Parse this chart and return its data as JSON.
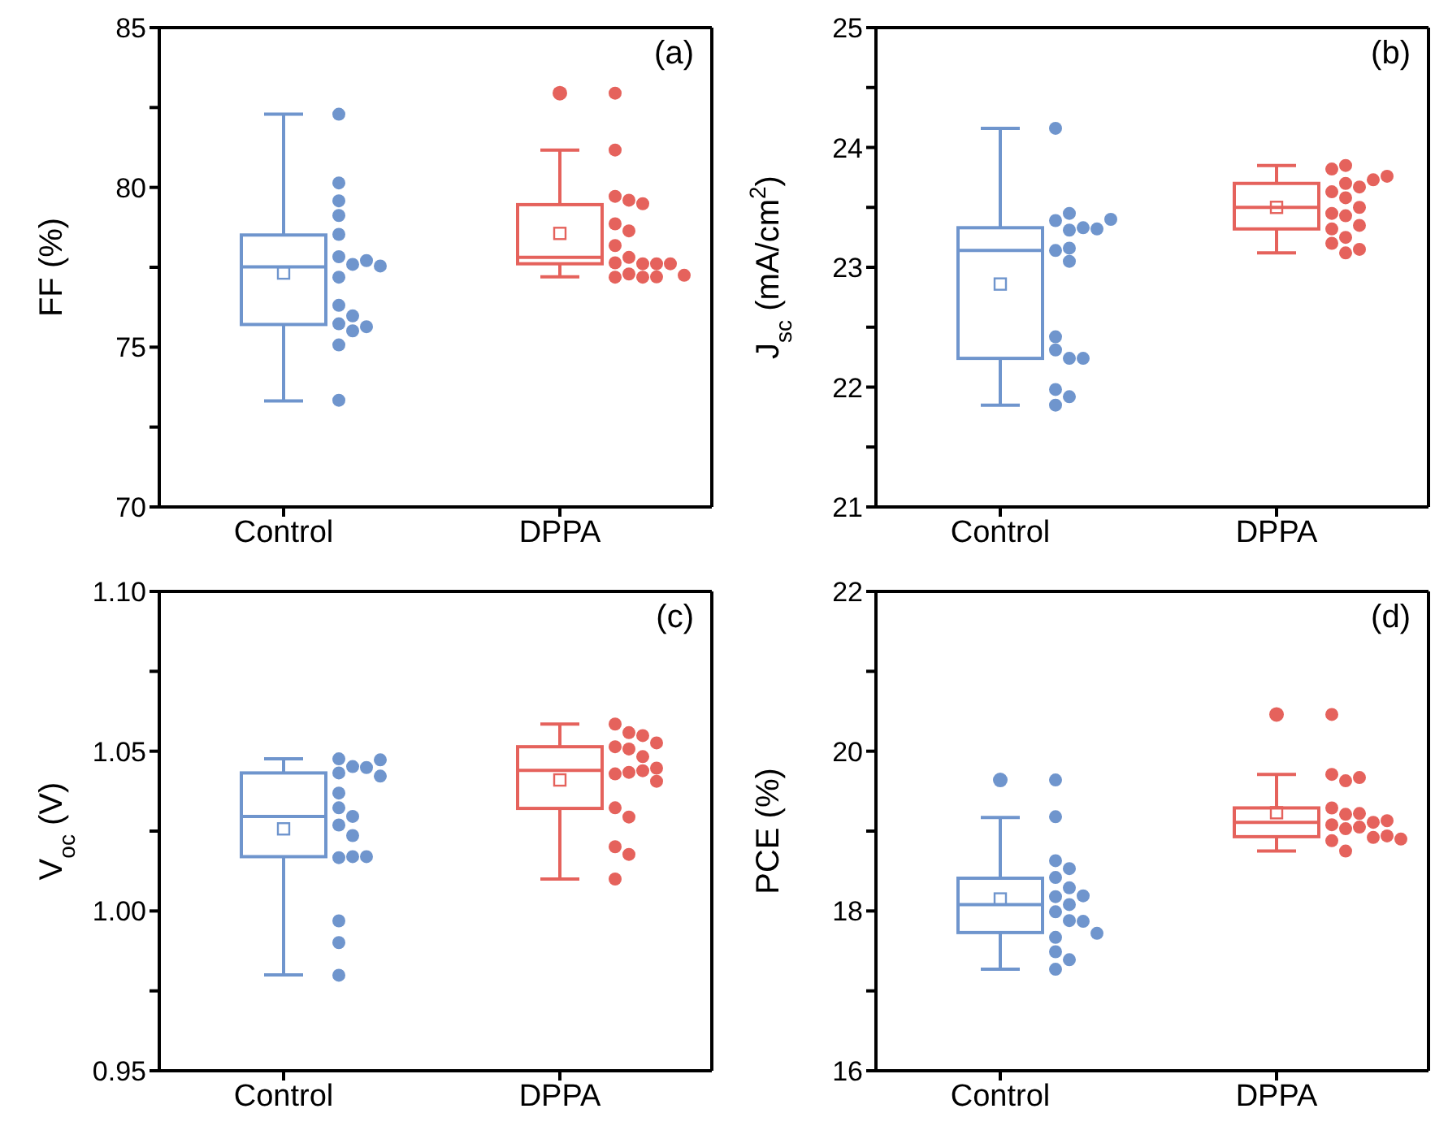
{
  "chart_data": [
    {
      "type": "box",
      "annotations": [
        "(a)"
      ],
      "ylabel": "FF (%)",
      "categories": [
        "Control",
        "DPPA"
      ],
      "colors": [
        "#6f95cd",
        "#e5625c"
      ],
      "ylim": [
        70,
        85
      ],
      "yticks": [
        70,
        {
          "value": 72.5,
          "label": null
        },
        75,
        {
          "value": 77.5,
          "label": null
        },
        80,
        {
          "value": 82.5,
          "label": null
        },
        85
      ],
      "boxes": [
        {
          "low": 73.32,
          "q1": 75.71,
          "median": 77.51,
          "q3": 78.51,
          "high": 82.29,
          "mean": 77.32
        },
        {
          "low": 77.2,
          "q1": 77.61,
          "median": 77.81,
          "q3": 79.46,
          "high": 81.17,
          "mean": 78.56,
          "outliers": [
            82.95
          ]
        }
      ],
      "series": [
        {
          "type": "scatter",
          "color": "#6f95cd",
          "x": [
            "Control",
            "Control",
            "Control",
            "Control",
            "Control",
            "Control",
            "Control",
            "Control",
            "Control",
            "Control",
            "Control",
            "Control",
            "Control",
            "Control",
            "Control",
            "Control",
            "Control"
          ],
          "values": [
            82.29,
            80.14,
            79.58,
            79.12,
            78.53,
            77.83,
            77.59,
            77.71,
            77.19,
            77.54,
            76.31,
            75.73,
            75.98,
            75.64,
            75.51,
            75.07,
            73.34
          ]
        },
        {
          "type": "scatter",
          "color": "#e5625c",
          "x": [
            "DPPA",
            "DPPA",
            "DPPA",
            "DPPA",
            "DPPA",
            "DPPA",
            "DPPA",
            "DPPA",
            "DPPA",
            "DPPA",
            "DPPA",
            "DPPA",
            "DPPA",
            "DPPA",
            "DPPA",
            "DPPA",
            "DPPA",
            "DPPA"
          ],
          "values": [
            82.95,
            81.17,
            79.72,
            79.6,
            79.49,
            78.86,
            78.64,
            78.18,
            77.81,
            77.64,
            77.61,
            77.61,
            77.61,
            77.29,
            77.25,
            77.19,
            77.19,
            77.2
          ]
        }
      ]
    },
    {
      "type": "box",
      "annotations": [
        "(b)"
      ],
      "ylabel": "J$_{sc}$ (mA/cm$^{2}$)",
      "categories": [
        "Control",
        "DPPA"
      ],
      "colors": [
        "#6f95cd",
        "#e5625c"
      ],
      "ylim": [
        21,
        25
      ],
      "yticks": [
        21,
        {
          "value": 21.5,
          "label": null
        },
        22,
        {
          "value": 22.5,
          "label": null
        },
        23,
        {
          "value": 23.5,
          "label": null
        },
        24,
        {
          "value": 24.5,
          "label": null
        },
        25
      ],
      "boxes": [
        {
          "low": 21.85,
          "q1": 22.24,
          "median": 23.14,
          "q3": 23.33,
          "high": 24.16,
          "mean": 22.86
        },
        {
          "low": 23.12,
          "q1": 23.32,
          "median": 23.5,
          "q3": 23.7,
          "high": 23.85,
          "mean": 23.5
        }
      ],
      "series": [
        {
          "type": "scatter",
          "color": "#6f95cd",
          "x": [
            "Control",
            "Control",
            "Control",
            "Control",
            "Control",
            "Control",
            "Control",
            "Control",
            "Control",
            "Control",
            "Control",
            "Control",
            "Control",
            "Control",
            "Control",
            "Control",
            "Control"
          ],
          "values": [
            24.16,
            23.39,
            23.31,
            23.33,
            23.14,
            23.05,
            23.32,
            23.4,
            23.45,
            23.16,
            22.42,
            22.31,
            22.24,
            22.24,
            21.98,
            21.85,
            21.92
          ]
        },
        {
          "type": "scatter",
          "color": "#e5625c",
          "x": [
            "DPPA",
            "DPPA",
            "DPPA",
            "DPPA",
            "DPPA",
            "DPPA",
            "DPPA",
            "DPPA",
            "DPPA",
            "DPPA",
            "DPPA",
            "DPPA",
            "DPPA",
            "DPPA",
            "DPPA",
            "DPPA",
            "DPPA"
          ],
          "values": [
            23.63,
            23.82,
            23.85,
            23.58,
            23.67,
            23.7,
            23.73,
            23.76,
            23.45,
            23.5,
            23.43,
            23.32,
            23.35,
            23.25,
            23.2,
            23.15,
            23.12
          ]
        }
      ]
    },
    {
      "type": "box",
      "annotations": [
        "(c)"
      ],
      "ylabel": "V$_{oc}$ (V)",
      "categories": [
        "Control",
        "DPPA"
      ],
      "colors": [
        "#6f95cd",
        "#e5625c"
      ],
      "ylim": [
        0.95,
        1.1
      ],
      "yticks": [
        {
          "value": 0.95,
          "label": "0.95"
        },
        {
          "value": 0.975,
          "label": null
        },
        {
          "value": 1,
          "label": "1.00"
        },
        {
          "value": 1.025,
          "label": null
        },
        {
          "value": 1.05,
          "label": "1.05"
        },
        {
          "value": 1.075,
          "label": null
        },
        {
          "value": 1.1,
          "label": "1.10"
        }
      ],
      "boxes": [
        {
          "low": 0.98,
          "q1": 1.017,
          "median": 1.0296,
          "q3": 1.0432,
          "high": 1.0476,
          "mean": 1.0257
        },
        {
          "low": 1.01,
          "q1": 1.0321,
          "median": 1.044,
          "q3": 1.0514,
          "high": 1.0585,
          "mean": 1.041
        }
      ],
      "series": [
        {
          "type": "scatter",
          "color": "#6f95cd",
          "x": [
            "Control",
            "Control",
            "Control",
            "Control",
            "Control",
            "Control",
            "Control",
            "Control",
            "Control",
            "Control",
            "Control",
            "Control",
            "Control",
            "Control",
            "Control",
            "Control",
            "Control"
          ],
          "values": [
            1.0476,
            1.0432,
            1.0452,
            1.0449,
            1.0422,
            1.0473,
            1.0369,
            1.0323,
            1.0296,
            1.0269,
            1.0236,
            1.0167,
            1.017,
            1.017,
            0.9969,
            0.9901,
            0.9799
          ]
        },
        {
          "type": "scatter",
          "color": "#e5625c",
          "x": [
            "DPPA",
            "DPPA",
            "DPPA",
            "DPPA",
            "DPPA",
            "DPPA",
            "DPPA",
            "DPPA",
            "DPPA",
            "DPPA",
            "DPPA",
            "DPPA",
            "DPPA",
            "DPPA",
            "DPPA",
            "DPPA",
            "DPPA"
          ],
          "values": [
            1.0585,
            1.0558,
            1.0514,
            1.0507,
            1.0549,
            1.0526,
            1.0483,
            1.0429,
            1.0434,
            1.0439,
            1.0447,
            1.0406,
            1.0323,
            1.0294,
            1.0201,
            1.0177,
            1.01
          ]
        }
      ]
    },
    {
      "type": "box",
      "annotations": [
        "(d)"
      ],
      "ylabel": "PCE (%)",
      "categories": [
        "Control",
        "DPPA"
      ],
      "colors": [
        "#6f95cd",
        "#e5625c"
      ],
      "ylim": [
        16,
        22
      ],
      "yticks": [
        16,
        {
          "value": 17,
          "label": null
        },
        18,
        {
          "value": 19,
          "label": null
        },
        20,
        {
          "value": 21,
          "label": null
        },
        22
      ],
      "boxes": [
        {
          "low": 17.27,
          "q1": 17.73,
          "median": 18.08,
          "q3": 18.41,
          "high": 19.17,
          "mean": 18.15,
          "outliers": [
            19.64
          ]
        },
        {
          "low": 18.75,
          "q1": 18.93,
          "median": 19.11,
          "q3": 19.29,
          "high": 19.71,
          "mean": 19.23,
          "outliers": [
            20.46
          ]
        }
      ],
      "series": [
        {
          "type": "scatter",
          "color": "#6f95cd",
          "x": [
            "Control",
            "Control",
            "Control",
            "Control",
            "Control",
            "Control",
            "Control",
            "Control",
            "Control",
            "Control",
            "Control",
            "Control",
            "Control",
            "Control",
            "Control",
            "Control",
            "Control"
          ],
          "values": [
            19.64,
            19.18,
            18.63,
            18.53,
            18.42,
            18.29,
            18.18,
            18.19,
            18.08,
            17.99,
            17.88,
            17.87,
            17.67,
            17.72,
            17.49,
            17.39,
            17.27
          ]
        },
        {
          "type": "scatter",
          "color": "#e5625c",
          "x": [
            "DPPA",
            "DPPA",
            "DPPA",
            "DPPA",
            "DPPA",
            "DPPA",
            "DPPA",
            "DPPA",
            "DPPA",
            "DPPA",
            "DPPA",
            "DPPA",
            "DPPA",
            "DPPA",
            "DPPA",
            "DPPA",
            "DPPA"
          ],
          "values": [
            20.46,
            19.71,
            19.63,
            19.67,
            19.29,
            19.21,
            19.22,
            19.08,
            19.11,
            19.13,
            19.03,
            19.05,
            18.88,
            18.92,
            18.94,
            18.9,
            18.75
          ]
        }
      ]
    }
  ]
}
